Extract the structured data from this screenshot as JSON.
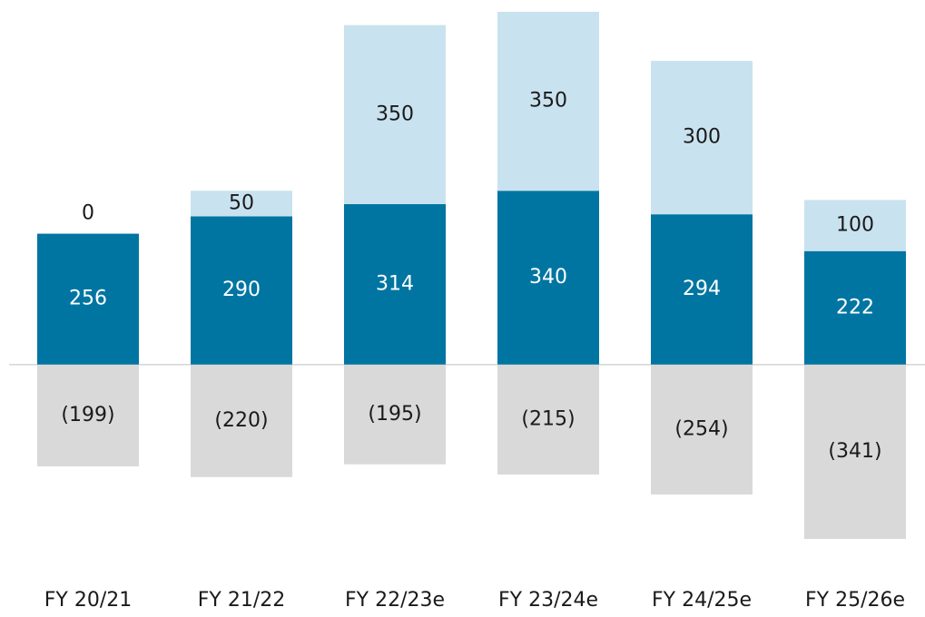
{
  "chart_data": {
    "type": "bar",
    "stacked": true,
    "categories": [
      "FY 20/21",
      "FY 21/22",
      "FY 22/23e",
      "FY 23/24e",
      "FY 24/25e",
      "FY 25/26e"
    ],
    "series": [
      {
        "color": "#0075a2",
        "label_color": "#ffffff",
        "values": [
          256,
          290,
          314,
          340,
          294,
          222
        ]
      },
      {
        "color": "#c9e2ef",
        "label_color": "#1a1a1a",
        "values": [
          0,
          50,
          350,
          350,
          300,
          100
        ]
      },
      {
        "color": "#d9d9d9",
        "label_color": "#1a1a1a",
        "values": [
          -199,
          -220,
          -195,
          -215,
          -254,
          -341
        ],
        "value_labels": [
          "(199)",
          "(220)",
          "(195)",
          "(215)",
          "(254)",
          "(341)"
        ]
      }
    ]
  }
}
